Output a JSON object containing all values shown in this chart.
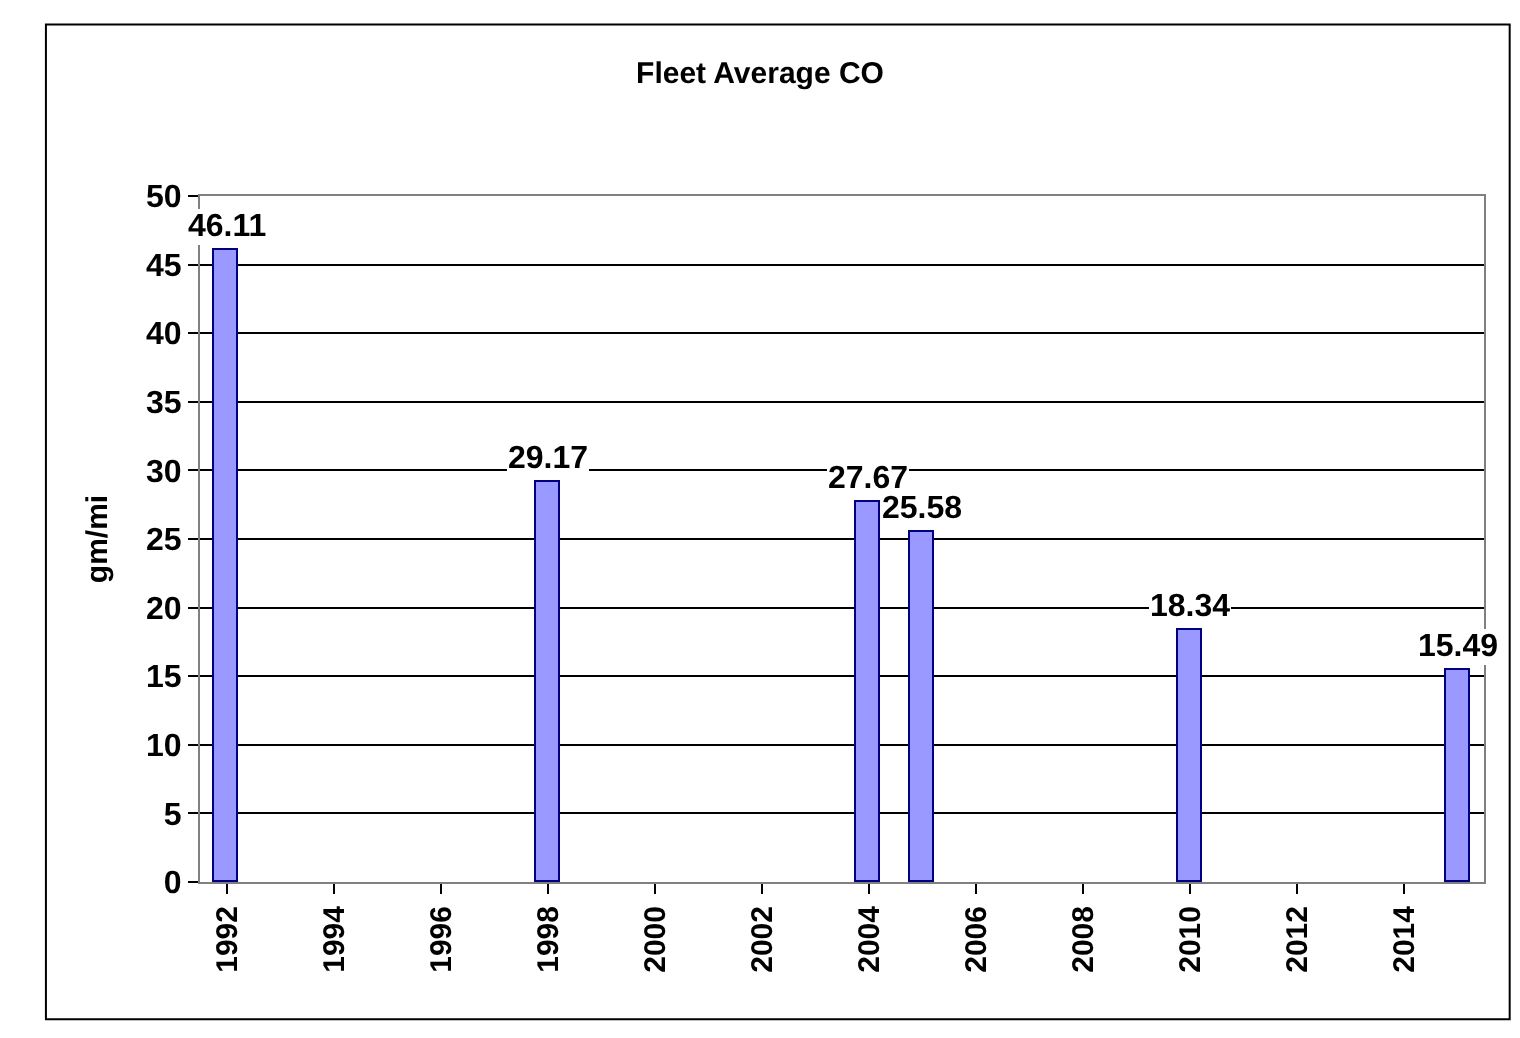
{
  "chart_data": {
    "type": "bar",
    "title": "Fleet Average CO",
    "ylabel": "gm/mi",
    "x": [
      1992,
      1998,
      2004,
      2005,
      2010,
      2015
    ],
    "values": [
      46.11,
      29.17,
      27.67,
      25.58,
      18.34,
      15.49
    ],
    "color": "#9999ff",
    "xlim": [
      1991.5,
      2015.5
    ],
    "xticks": [
      1992,
      1994,
      1996,
      1998,
      2000,
      2002,
      2004,
      2006,
      2008,
      2010,
      2012,
      2014
    ],
    "ylim": [
      0,
      50
    ],
    "yticks": [
      0,
      5,
      10,
      15,
      20,
      25,
      30,
      35,
      40,
      45,
      50
    ],
    "data_labels": true,
    "grid": "y",
    "legend": false
  }
}
